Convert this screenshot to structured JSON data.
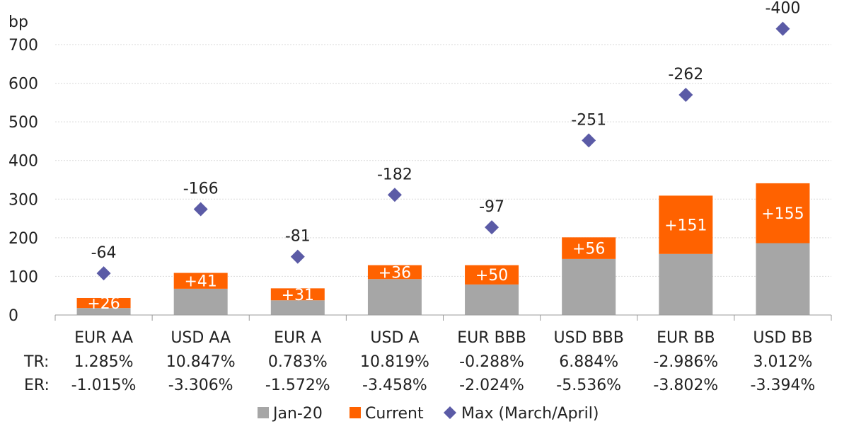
{
  "chart_data": {
    "type": "bar",
    "stacked": true,
    "y_unit_label": "bp",
    "ylim": [
      0,
      700
    ],
    "yticks": [
      0,
      100,
      200,
      300,
      400,
      500,
      600,
      700
    ],
    "grid": true,
    "legend_position": "bottom",
    "categories": [
      "EUR AA",
      "USD AA",
      "EUR A",
      "USD A",
      "EUR BBB",
      "USD BBB",
      "EUR BB",
      "USD BB"
    ],
    "series": [
      {
        "name": "Jan-20",
        "kind": "bar",
        "color": "#a6a6a6",
        "values": [
          18,
          68,
          38,
          93,
          79,
          145,
          158,
          186
        ]
      },
      {
        "name": "Current",
        "kind": "bar",
        "color": "#ff6200",
        "values": [
          26,
          41,
          31,
          36,
          50,
          56,
          151,
          155
        ],
        "labels": [
          "+26",
          "+41",
          "+31",
          "+36",
          "+50",
          "+56",
          "+151",
          "+155"
        ]
      },
      {
        "name": "Max (March/April)",
        "kind": "marker",
        "color": "#5b5ba6",
        "values": [
          108,
          274,
          151,
          311,
          227,
          452,
          570,
          741
        ],
        "labels": [
          "-64",
          "-166",
          "-81",
          "-182",
          "-97",
          "-251",
          "-262",
          "-400"
        ]
      }
    ],
    "tr_label": "TR:",
    "tr_values": [
      "1.285%",
      "10.847%",
      "0.783%",
      "10.819%",
      "-0.288%",
      "6.884%",
      "-2.986%",
      "3.012%"
    ],
    "er_label": "ER:",
    "er_values": [
      "-1.015%",
      "-3.306%",
      "-1.572%",
      "-3.458%",
      "-2.024%",
      "-5.536%",
      "-3.802%",
      "-3.394%"
    ]
  }
}
